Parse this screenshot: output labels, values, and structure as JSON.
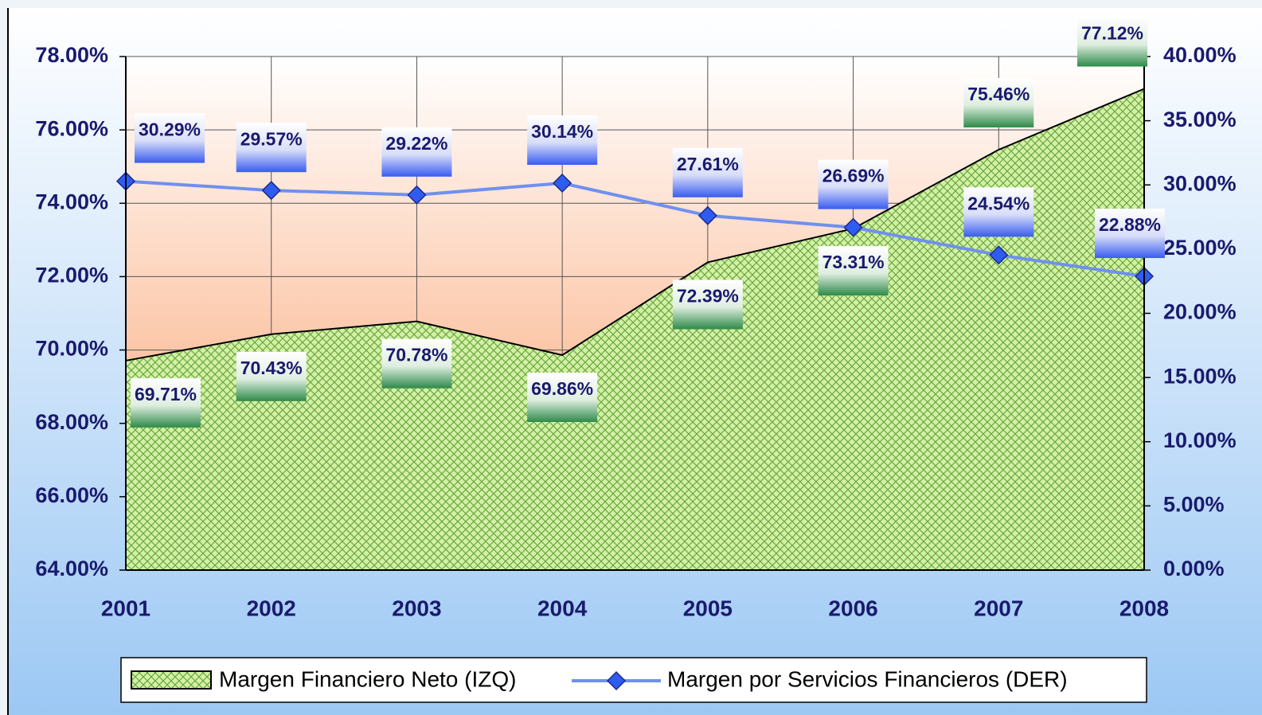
{
  "chart_data": {
    "type": "area_line",
    "categories": [
      "2001",
      "2002",
      "2003",
      "2004",
      "2005",
      "2006",
      "2007",
      "2008"
    ],
    "series": [
      {
        "name": "Margen Financiero Neto (IZQ)",
        "type": "area",
        "color": "#c8ec9a",
        "values": [
          69.71,
          70.43,
          70.78,
          69.86,
          72.39,
          73.31,
          75.46,
          77.12
        ],
        "value_labels": [
          "69.71%",
          "70.43%",
          "70.78%",
          "69.86%",
          "72.39%",
          "73.31%",
          "75.46%",
          "77.12%"
        ]
      },
      {
        "name": "Margen por Servicios Financieros (DER)",
        "type": "line",
        "axis": "y2",
        "color": "#7090f0",
        "values": [
          30.29,
          29.57,
          29.22,
          30.14,
          27.61,
          26.69,
          24.54,
          22.88
        ],
        "value_labels": [
          "30.29%",
          "29.57%",
          "29.22%",
          "30.14%",
          "27.61%",
          "26.69%",
          "24.54%",
          "22.88%"
        ]
      }
    ],
    "ylim": [
      64,
      78
    ],
    "yticks": [
      {
        "value": 64,
        "label": "64.00%"
      },
      {
        "value": 66,
        "label": "66.00%"
      },
      {
        "value": 68,
        "label": "68.00%"
      },
      {
        "value": 70,
        "label": "70.00%"
      },
      {
        "value": 72,
        "label": "72.00%"
      },
      {
        "value": 74,
        "label": "74.00%"
      },
      {
        "value": 76,
        "label": "76.00%"
      },
      {
        "value": 78,
        "label": "78.00%"
      }
    ],
    "y2lim": [
      0,
      40
    ],
    "y2ticks": [
      {
        "value": 0,
        "label": "0.00%"
      },
      {
        "value": 5,
        "label": "5.00%"
      },
      {
        "value": 10,
        "label": "10.00%"
      },
      {
        "value": 15,
        "label": "15.00%"
      },
      {
        "value": 20,
        "label": "20.00%"
      },
      {
        "value": 25,
        "label": "25.00%"
      },
      {
        "value": 30,
        "label": "30.00%"
      },
      {
        "value": 35,
        "label": "35.00%"
      },
      {
        "value": 40,
        "label": "40.00%"
      }
    ],
    "grid": true,
    "legend": "bottom"
  }
}
